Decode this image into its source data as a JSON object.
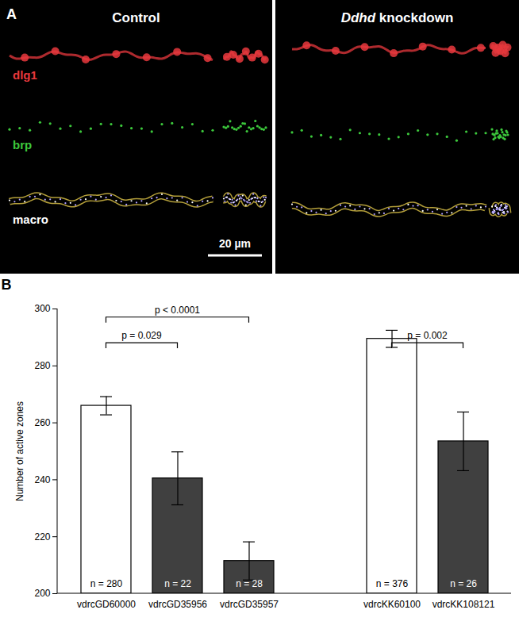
{
  "panel_a": {
    "label": "A",
    "panels": [
      {
        "title": "Control"
      },
      {
        "title": "Ddhd knockdown",
        "italic": "Ddhd"
      }
    ],
    "channels": [
      {
        "name": "dlg1",
        "color": "#e8383d"
      },
      {
        "name": "brp",
        "color": "#3cc83c"
      },
      {
        "name": "macro",
        "color": "#ffffff"
      }
    ],
    "scale_bar": "20 µm"
  },
  "chart_data": {
    "type": "bar",
    "title": "B",
    "ylabel": "Number of active zones",
    "categories": [
      "vdrcGD60000",
      "vdrcGD35956",
      "vdrcGD35957",
      null,
      "vdrcKK60100",
      "vdrcKK108121"
    ],
    "values": [
      266,
      240.5,
      211.5,
      null,
      289.5,
      253.5
    ],
    "errors": [
      3.2,
      9.3,
      6.7,
      null,
      3,
      10.3
    ],
    "colors": [
      "#ffffff",
      "#404040",
      "#404040",
      null,
      "#ffffff",
      "#404040"
    ],
    "n_labels": [
      "n = 280",
      "n = 22",
      "n = 28",
      null,
      "n = 376",
      "n = 26"
    ],
    "ylim": [
      200,
      300
    ],
    "yticks": [
      200,
      220,
      240,
      260,
      280,
      300
    ],
    "comparisons": [
      {
        "from": "vdrcGD60000",
        "to": "vdrcGD35956",
        "label": "p = 0.029"
      },
      {
        "from": "vdrcGD60000",
        "to": "vdrcGD35957",
        "label": "p < 0.0001"
      },
      {
        "from": "vdrcKK60100",
        "to": "vdrcKK108121",
        "label": "p = 0.002"
      }
    ]
  }
}
